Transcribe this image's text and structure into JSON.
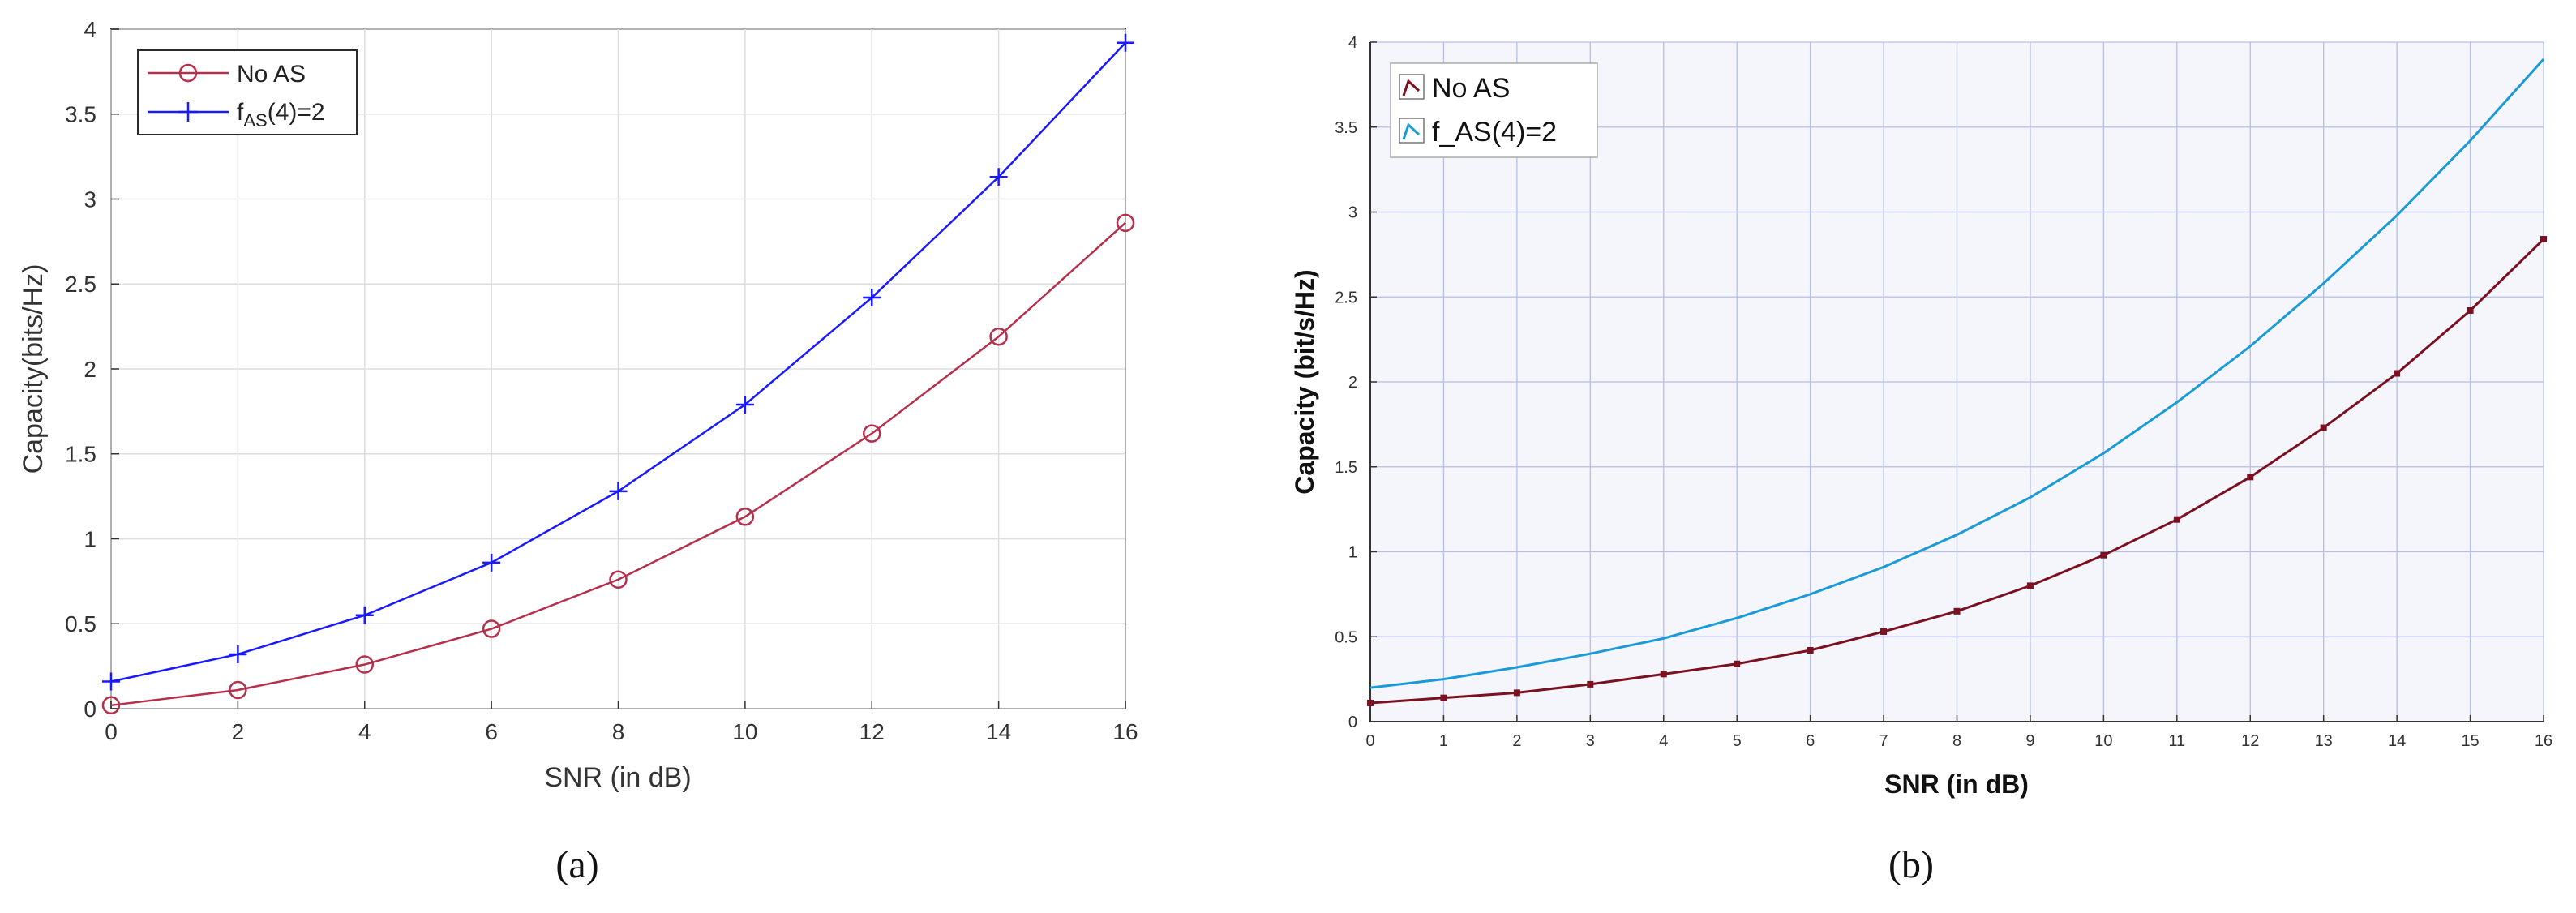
{
  "figure": {
    "panel_a_caption": "(a)",
    "panel_b_caption": "(b)"
  },
  "chart_data": [
    {
      "type": "line",
      "xlabel": "SNR (in dB)",
      "ylabel": "Capacity(bits/Hz)",
      "xlim": [
        0,
        16
      ],
      "ylim": [
        0,
        4
      ],
      "xticks": [
        "0",
        "2",
        "4",
        "6",
        "8",
        "10",
        "12",
        "14",
        "16"
      ],
      "yticks": [
        "0",
        "0.5",
        "1",
        "1.5",
        "2",
        "2.5",
        "3",
        "3.5",
        "4"
      ],
      "grid": true,
      "legend_position": "top-left",
      "series": [
        {
          "name": "No AS",
          "color": "#b5304a",
          "marker": "circle",
          "x": [
            0,
            2,
            4,
            6,
            8,
            10,
            12,
            14,
            16
          ],
          "y": [
            0.02,
            0.11,
            0.26,
            0.47,
            0.76,
            1.13,
            1.62,
            2.19,
            2.86
          ]
        },
        {
          "name": "fAS(4)=2",
          "name_parts": {
            "base": "f",
            "sub": "AS",
            "rest": "(4)=2"
          },
          "color": "#1a1aff",
          "marker": "plus",
          "x": [
            0,
            2,
            4,
            6,
            8,
            10,
            12,
            14,
            16
          ],
          "y": [
            0.16,
            0.32,
            0.55,
            0.86,
            1.28,
            1.79,
            2.42,
            3.13,
            3.92
          ]
        }
      ]
    },
    {
      "type": "line",
      "xlabel": "SNR (in dB)",
      "ylabel": "Capacity (bit/s/Hz)",
      "xlim": [
        0,
        16
      ],
      "ylim": [
        0,
        4
      ],
      "xticks": [
        "0",
        "1",
        "2",
        "3",
        "4",
        "5",
        "6",
        "7",
        "8",
        "9",
        "10",
        "11",
        "12",
        "13",
        "14",
        "15",
        "16"
      ],
      "yticks": [
        "0",
        "0.5",
        "1",
        "1.5",
        "2",
        "2.5",
        "3",
        "3.5",
        "4"
      ],
      "grid": true,
      "legend_position": "top-left",
      "series": [
        {
          "name": "No AS",
          "color": "#7a1020",
          "marker": "square",
          "x": [
            0,
            1,
            2,
            3,
            4,
            5,
            6,
            7,
            8,
            9,
            10,
            11,
            12,
            13,
            14,
            15,
            16
          ],
          "y": [
            0.11,
            0.14,
            0.17,
            0.22,
            0.28,
            0.34,
            0.42,
            0.53,
            0.65,
            0.8,
            0.98,
            1.19,
            1.44,
            1.73,
            2.05,
            2.42,
            2.84
          ]
        },
        {
          "name": "f_AS(4)=2",
          "color": "#1a9ad6",
          "marker": "none",
          "x": [
            0,
            1,
            2,
            3,
            4,
            5,
            6,
            7,
            8,
            9,
            10,
            11,
            12,
            13,
            14,
            15,
            16
          ],
          "y": [
            0.2,
            0.25,
            0.32,
            0.4,
            0.49,
            0.61,
            0.75,
            0.91,
            1.1,
            1.32,
            1.58,
            1.88,
            2.21,
            2.58,
            2.98,
            3.42,
            3.9
          ]
        }
      ]
    }
  ]
}
